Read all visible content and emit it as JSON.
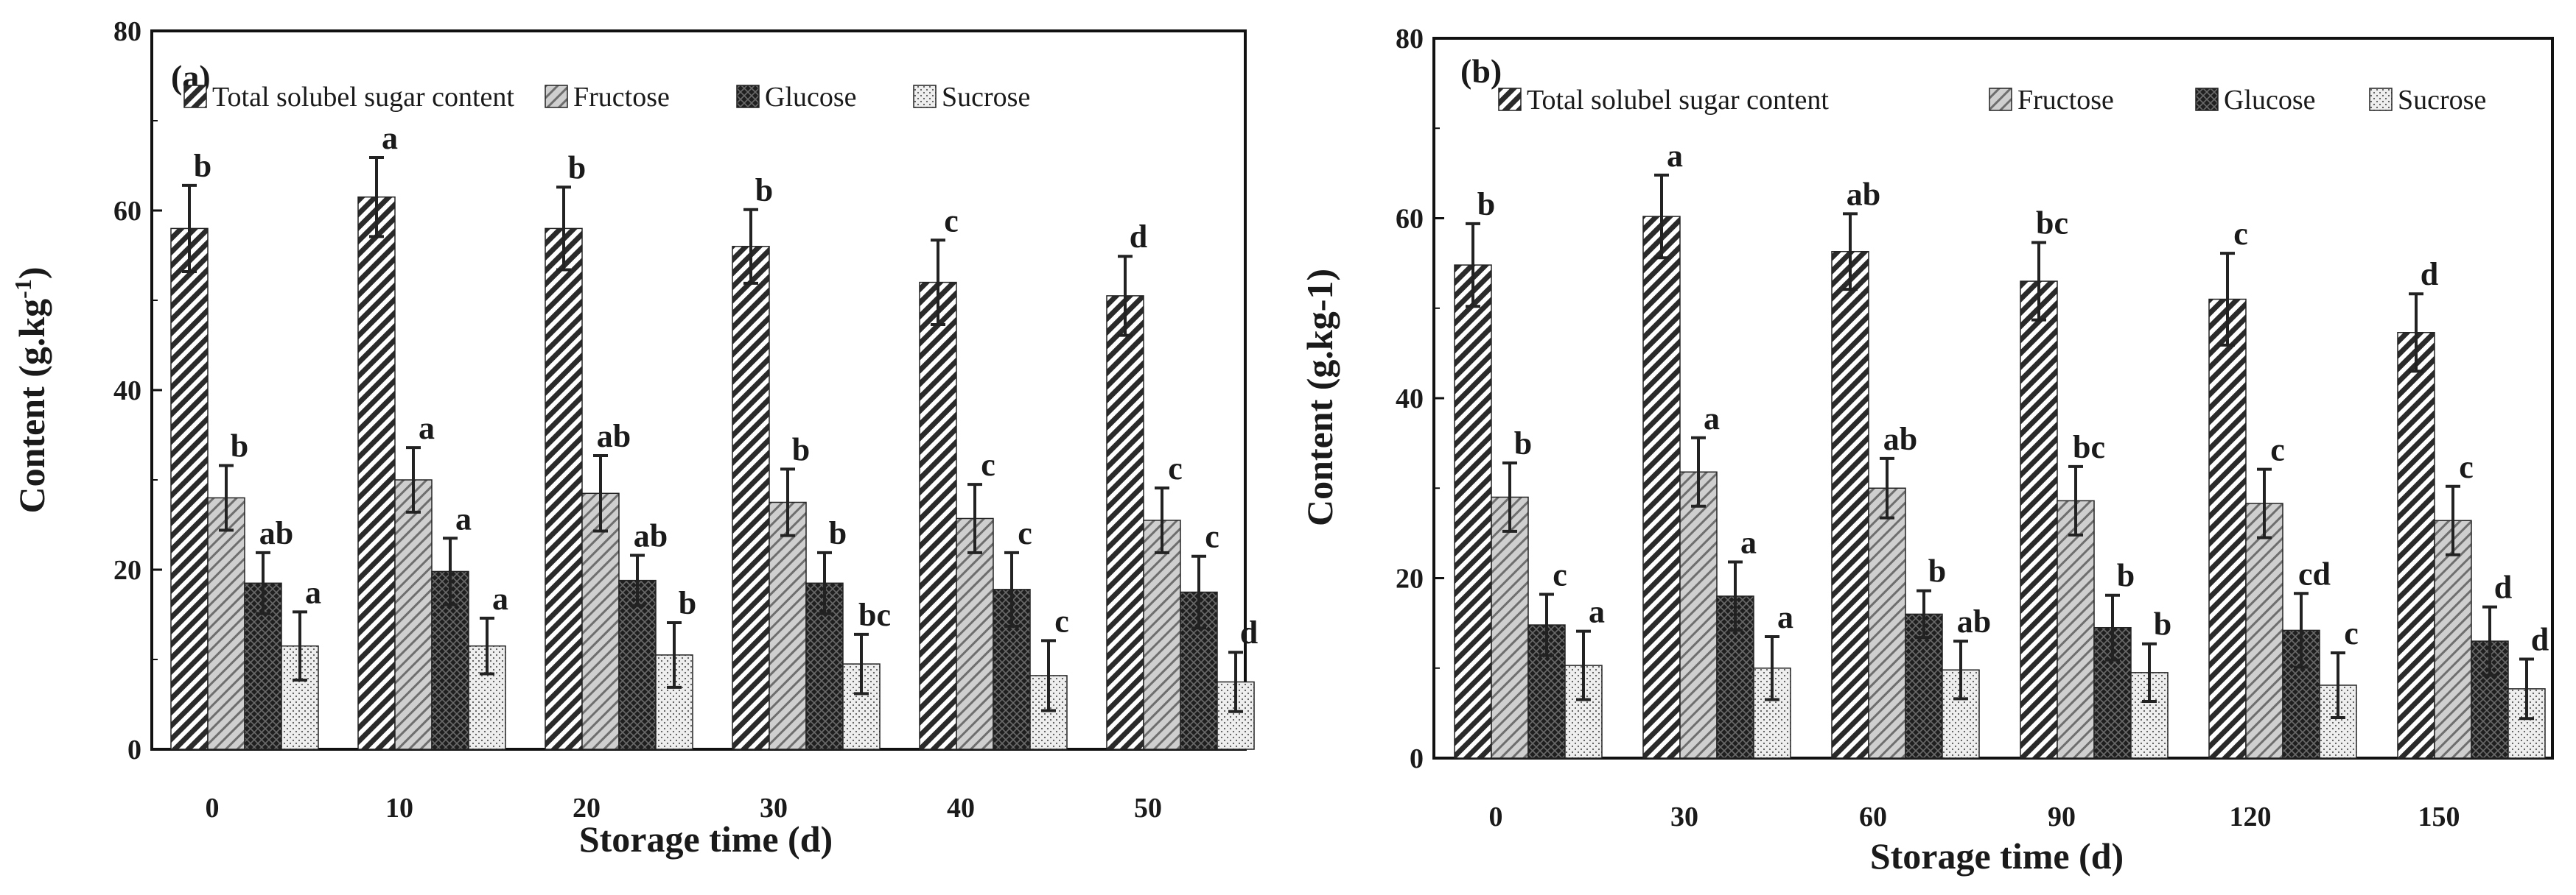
{
  "chart_data": [
    {
      "type": "bar",
      "panel_label": "(a)",
      "categories": [
        "0",
        "10",
        "20",
        "30",
        "40",
        "50"
      ],
      "xlabel": "Storage time (d)",
      "ylabel": "Content (g.kg",
      "ylabel_sup": "-1",
      "ylabel_end": ")",
      "ylim": [
        0,
        80
      ],
      "yticks": [
        "0",
        "20",
        "40",
        "60",
        "80"
      ],
      "legend_position": "top",
      "series": [
        {
          "name": "Total solubel sugar content",
          "values": [
            58,
            61.5,
            58,
            56,
            52,
            50.5
          ],
          "errors": [
            4.8,
            4.4,
            4.6,
            4.1,
            4.7,
            4.4
          ],
          "letters": [
            "b",
            "a",
            "b",
            "b",
            "c",
            "d"
          ]
        },
        {
          "name": "Fructose",
          "values": [
            28,
            30,
            28.5,
            27.5,
            25.7,
            25.5
          ],
          "errors": [
            3.6,
            3.6,
            4.2,
            3.7,
            3.8,
            3.6
          ],
          "letters": [
            "b",
            "a",
            "ab",
            "b",
            "c",
            "c"
          ]
        },
        {
          "name": "Glucose",
          "values": [
            18.5,
            19.8,
            18.8,
            18.5,
            17.8,
            17.5
          ],
          "errors": [
            3.4,
            3.7,
            2.8,
            3.4,
            4.1,
            4.0
          ],
          "letters": [
            "ab",
            "a",
            "ab",
            "b",
            "c",
            "c"
          ]
        },
        {
          "name": "Sucrose",
          "values": [
            11.5,
            11.5,
            10.5,
            9.5,
            8.2,
            7.5
          ],
          "errors": [
            3.8,
            3.1,
            3.6,
            3.3,
            3.9,
            3.3
          ],
          "letters": [
            "a",
            "a",
            "b",
            "bc",
            "c",
            "d"
          ]
        }
      ]
    },
    {
      "type": "bar",
      "panel_label": "(b)",
      "categories": [
        "0",
        "30",
        "60",
        "90",
        "120",
        "150"
      ],
      "xlabel": "Storage time (d)",
      "ylabel": "Content (g.kg-1)",
      "ylabel_sup": "",
      "ylabel_end": "",
      "ylim": [
        0,
        80
      ],
      "yticks": [
        "0",
        "20",
        "40",
        "60",
        "80"
      ],
      "legend_position": "top",
      "series": [
        {
          "name": "Total solubel sugar content",
          "values": [
            54.8,
            60.2,
            56.3,
            53,
            51,
            47.3
          ],
          "errors": [
            4.6,
            4.6,
            4.2,
            4.3,
            5.1,
            4.3
          ],
          "letters": [
            "b",
            "a",
            "ab",
            "bc",
            "c",
            "d"
          ]
        },
        {
          "name": "Fructose",
          "values": [
            29,
            31.8,
            30,
            28.6,
            28.3,
            26.4
          ],
          "errors": [
            3.8,
            3.8,
            3.3,
            3.8,
            3.8,
            3.8
          ],
          "letters": [
            "b",
            "a",
            "ab",
            "bc",
            "c",
            "c"
          ]
        },
        {
          "name": "Glucose",
          "values": [
            14.8,
            18,
            16,
            14.5,
            14.2,
            13
          ],
          "errors": [
            3.4,
            3.8,
            2.6,
            3.6,
            4.1,
            3.8
          ],
          "letters": [
            "c",
            "a",
            "b",
            "b",
            "cd",
            "d"
          ]
        },
        {
          "name": "Sucrose",
          "values": [
            10.3,
            10,
            9.8,
            9.5,
            8.1,
            7.7
          ],
          "errors": [
            3.8,
            3.5,
            3.2,
            3.2,
            3.6,
            3.3
          ],
          "letters": [
            "a",
            "a",
            "ab",
            "b",
            "c",
            "d"
          ]
        }
      ]
    }
  ]
}
